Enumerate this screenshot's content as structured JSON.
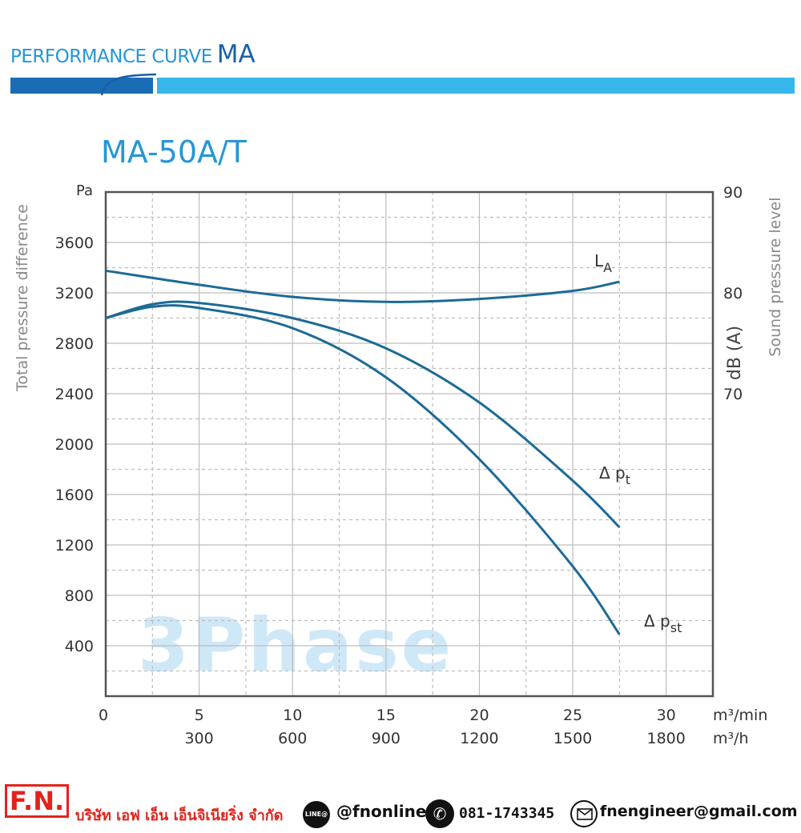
{
  "header": {
    "title_prefix": "PERFORMANCE CURVE",
    "title_model": "MA"
  },
  "chart_data": {
    "type": "line",
    "title": "MA-50A/T",
    "left_unit": "Pa",
    "ylabel_left": "Total pressure difference",
    "ylabel_right_unit": "dB (A)",
    "ylabel_right": "Sound pressure level",
    "x_unit_min": "m³/min",
    "x_unit_h": "m³/h",
    "xlim": [
      0,
      32.5
    ],
    "ylim": [
      0,
      4000
    ],
    "ylim_right": [
      40,
      90
    ],
    "grid": true,
    "x_ticks_min": [
      "0",
      "5",
      "10",
      "15",
      "20",
      "25",
      "30"
    ],
    "x_ticks_h": [
      "300",
      "600",
      "900",
      "1200",
      "1500",
      "1800"
    ],
    "y_ticks_left": [
      "400",
      "800",
      "1200",
      "1600",
      "2000",
      "2400",
      "2800",
      "3200",
      "3600"
    ],
    "y_ticks_right": [
      "70",
      "80",
      "90"
    ],
    "watermark": "3Phase",
    "series": [
      {
        "name": "LA",
        "axis": "right",
        "x": [
          0,
          5,
          10,
          15,
          20,
          25,
          27.5
        ],
        "y": [
          82.2,
          80.8,
          79.6,
          79.1,
          79.4,
          80.2,
          81.1
        ]
      },
      {
        "name": "Δ pt",
        "axis": "left",
        "x": [
          0,
          2.5,
          5,
          10,
          15,
          20,
          25,
          27.5
        ],
        "y": [
          3000,
          3110,
          3120,
          3000,
          2760,
          2330,
          1710,
          1340
        ]
      },
      {
        "name": "Δ pst",
        "axis": "left",
        "x": [
          0,
          2.5,
          5,
          10,
          15,
          20,
          25,
          27.5
        ],
        "y": [
          3000,
          3090,
          3080,
          2920,
          2530,
          1880,
          1030,
          490
        ]
      }
    ],
    "labels": {
      "la_main": "L",
      "la_sub": "A",
      "pt_main": "Δ p",
      "pt_sub": "t",
      "pst_main": "Δ p",
      "pst_sub": "st"
    },
    "colors": {
      "curve": "#1c6a96",
      "grid": "#bdbdbd",
      "frame": "#555555",
      "watermark": "#cfe8f8"
    }
  },
  "footer": {
    "logo": "F.N.",
    "company": "บริษัท เอฟ เอ็น เอ็นจิเนียริ่ง จำกัด",
    "line_icon": "LINE@",
    "line_id": "@fnonline",
    "phone_icon": "phone-icon",
    "phone": "081-1743345",
    "mail_icon": "mail-icon",
    "email": "fnengineer@gmail.com"
  }
}
